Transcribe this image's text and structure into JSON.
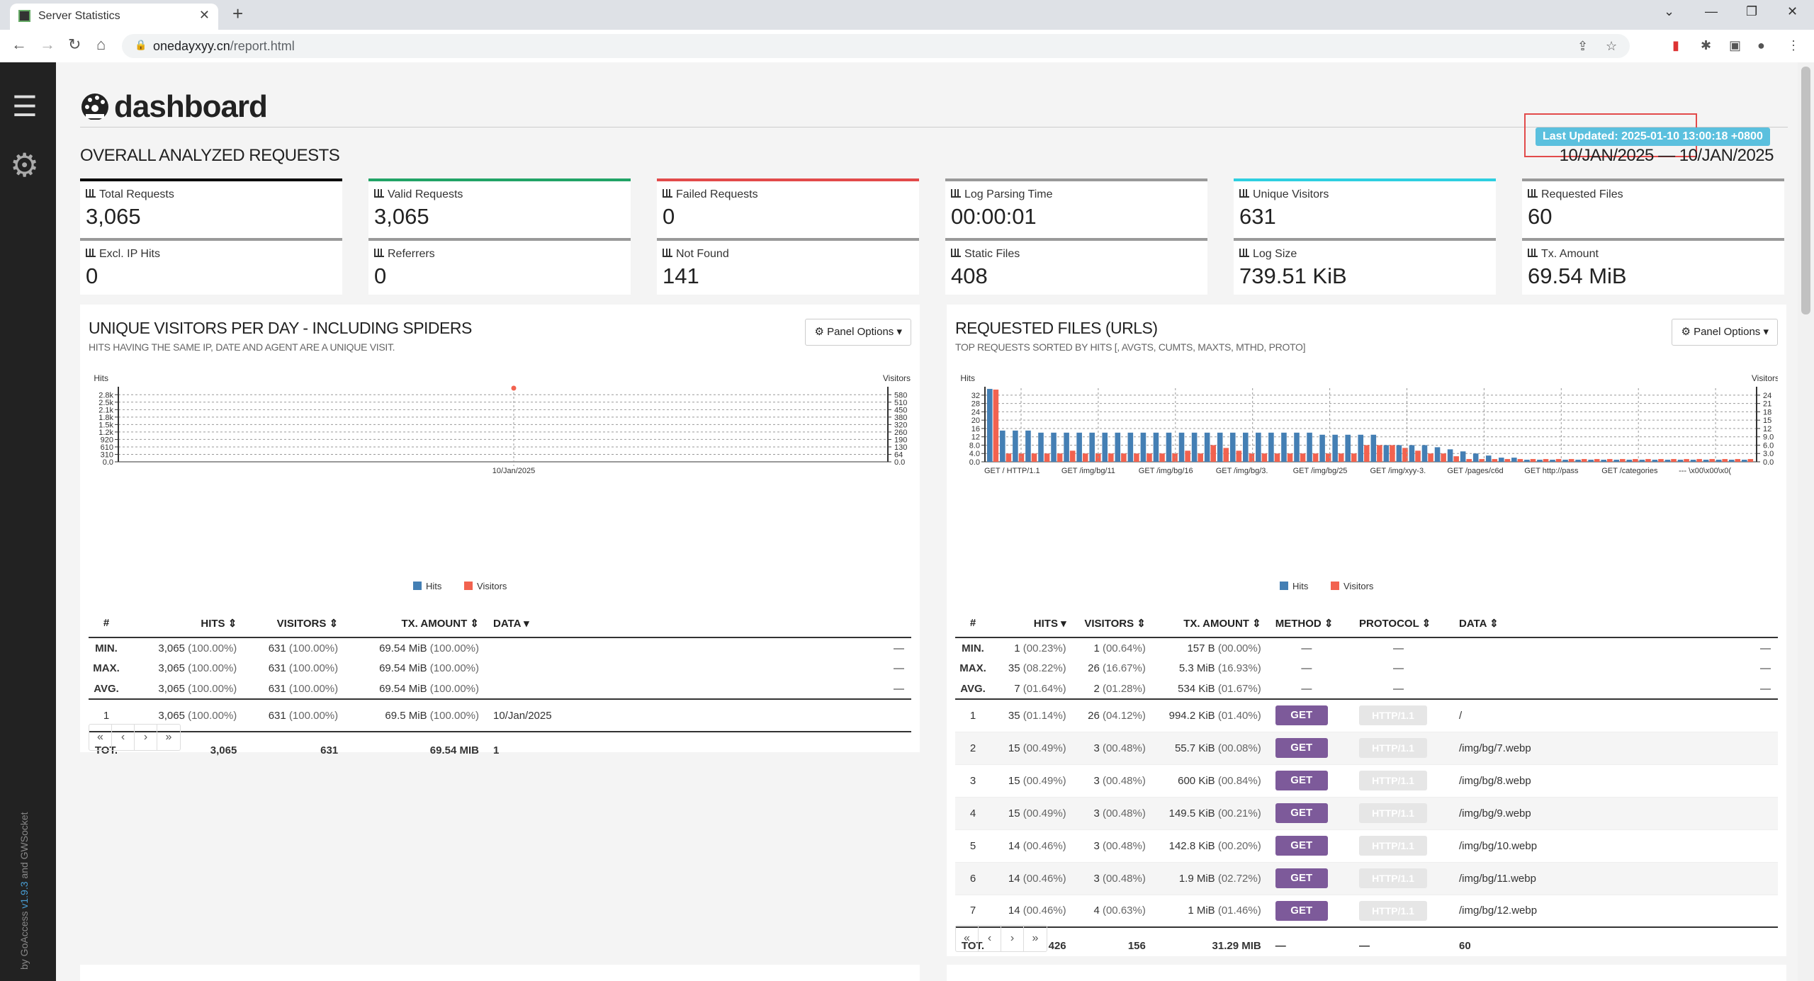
{
  "browser": {
    "tab_title": "Server Statistics",
    "url_host": "onedayxyy.cn",
    "url_path": "/report.html"
  },
  "sidebar": {
    "credit_prefix": "by GoAccess ",
    "credit_version": "v1.9.3",
    "credit_suffix": " and GWSocket"
  },
  "header": {
    "brand": "dashboard",
    "last_updated": "Last Updated: 2025-01-10 13:00:18 +0800"
  },
  "overall": {
    "title": "OVERALL ANALYZED REQUESTS",
    "date_range": "10/JAN/2025 — 10/JAN/2025",
    "cards": [
      {
        "label": "Total Requests",
        "value": "3,065",
        "color": "#000000"
      },
      {
        "label": "Valid Requests",
        "value": "3,065",
        "color": "#21a366"
      },
      {
        "label": "Failed Requests",
        "value": "0",
        "color": "#e24a4a"
      },
      {
        "label": "Log Parsing Time",
        "value": "00:00:01",
        "color": "#999999"
      },
      {
        "label": "Unique Visitors",
        "value": "631",
        "color": "#2ecfe0"
      },
      {
        "label": "Requested Files",
        "value": "60",
        "color": "#999999"
      },
      {
        "label": "Excl. IP Hits",
        "value": "0",
        "color": "#999999"
      },
      {
        "label": "Referrers",
        "value": "0",
        "color": "#999999"
      },
      {
        "label": "Not Found",
        "value": "141",
        "color": "#999999"
      },
      {
        "label": "Static Files",
        "value": "408",
        "color": "#999999"
      },
      {
        "label": "Log Size",
        "value": "739.51 KiB",
        "color": "#999999"
      },
      {
        "label": "Tx. Amount",
        "value": "69.54 MiB",
        "color": "#999999"
      }
    ]
  },
  "visitors_panel": {
    "title": "UNIQUE VISITORS PER DAY - INCLUDING SPIDERS",
    "subtitle": "HITS HAVING THE SAME IP, DATE AND AGENT ARE A UNIQUE VISIT.",
    "options_label": "Panel Options",
    "legend_hits": "Hits",
    "legend_visitors": "Visitors",
    "columns": [
      "#",
      "HITS",
      "VISITORS",
      "TX. AMOUNT",
      "DATA"
    ],
    "agg": [
      {
        "label": "MIN.",
        "hits": "3,065",
        "hits_pct": "(100.00%)",
        "vis": "631",
        "vis_pct": "(100.00%)",
        "tx": "69.54 MiB",
        "tx_pct": "(100.00%)",
        "data": "—"
      },
      {
        "label": "MAX.",
        "hits": "3,065",
        "hits_pct": "(100.00%)",
        "vis": "631",
        "vis_pct": "(100.00%)",
        "tx": "69.54 MiB",
        "tx_pct": "(100.00%)",
        "data": "—"
      },
      {
        "label": "AVG.",
        "hits": "3,065",
        "hits_pct": "(100.00%)",
        "vis": "631",
        "vis_pct": "(100.00%)",
        "tx": "69.54 MiB",
        "tx_pct": "(100.00%)",
        "data": "—"
      }
    ],
    "rows": [
      {
        "n": "1",
        "hits": "3,065",
        "hits_pct": "(100.00%)",
        "vis": "631",
        "vis_pct": "(100.00%)",
        "tx": "69.5 MiB",
        "tx_pct": "(100.00%)",
        "data": "10/Jan/2025"
      }
    ],
    "total": {
      "label": "TOT.",
      "hits": "3,065",
      "vis": "631",
      "tx": "69.54 MIB",
      "data": "1"
    }
  },
  "files_panel": {
    "title": "REQUESTED FILES (URLS)",
    "subtitle": "TOP REQUESTS SORTED BY HITS [, AVGTS, CUMTS, MAXTS, MTHD, PROTO]",
    "options_label": "Panel Options",
    "legend_hits": "Hits",
    "legend_visitors": "Visitors",
    "columns": [
      "#",
      "HITS",
      "VISITORS",
      "TX. AMOUNT",
      "METHOD",
      "PROTOCOL",
      "DATA"
    ],
    "agg": [
      {
        "label": "MIN.",
        "hits": "1",
        "hits_pct": "(00.23%)",
        "vis": "1",
        "vis_pct": "(00.64%)",
        "tx": "157 B",
        "tx_pct": "(00.00%)",
        "method": "—",
        "proto": "—",
        "data": "—"
      },
      {
        "label": "MAX.",
        "hits": "35",
        "hits_pct": "(08.22%)",
        "vis": "26",
        "vis_pct": "(16.67%)",
        "tx": "5.3 MiB",
        "tx_pct": "(16.93%)",
        "method": "—",
        "proto": "—",
        "data": "—"
      },
      {
        "label": "AVG.",
        "hits": "7",
        "hits_pct": "(01.64%)",
        "vis": "2",
        "vis_pct": "(01.28%)",
        "tx": "534 KiB",
        "tx_pct": "(01.67%)",
        "method": "—",
        "proto": "—",
        "data": "—"
      }
    ],
    "rows": [
      {
        "n": "1",
        "hits": "35",
        "hits_pct": "(01.14%)",
        "vis": "26",
        "vis_pct": "(04.12%)",
        "tx": "994.2 KiB",
        "tx_pct": "(01.40%)",
        "method": "GET",
        "proto": "HTTP/1.1",
        "data": "/"
      },
      {
        "n": "2",
        "hits": "15",
        "hits_pct": "(00.49%)",
        "vis": "3",
        "vis_pct": "(00.48%)",
        "tx": "55.7 KiB",
        "tx_pct": "(00.08%)",
        "method": "GET",
        "proto": "HTTP/1.1",
        "data": "/img/bg/7.webp"
      },
      {
        "n": "3",
        "hits": "15",
        "hits_pct": "(00.49%)",
        "vis": "3",
        "vis_pct": "(00.48%)",
        "tx": "600 KiB",
        "tx_pct": "(00.84%)",
        "method": "GET",
        "proto": "HTTP/1.1",
        "data": "/img/bg/8.webp"
      },
      {
        "n": "4",
        "hits": "15",
        "hits_pct": "(00.49%)",
        "vis": "3",
        "vis_pct": "(00.48%)",
        "tx": "149.5 KiB",
        "tx_pct": "(00.21%)",
        "method": "GET",
        "proto": "HTTP/1.1",
        "data": "/img/bg/9.webp"
      },
      {
        "n": "5",
        "hits": "14",
        "hits_pct": "(00.46%)",
        "vis": "3",
        "vis_pct": "(00.48%)",
        "tx": "142.8 KiB",
        "tx_pct": "(00.20%)",
        "method": "GET",
        "proto": "HTTP/1.1",
        "data": "/img/bg/10.webp"
      },
      {
        "n": "6",
        "hits": "14",
        "hits_pct": "(00.46%)",
        "vis": "3",
        "vis_pct": "(00.48%)",
        "tx": "1.9 MiB",
        "tx_pct": "(02.72%)",
        "method": "GET",
        "proto": "HTTP/1.1",
        "data": "/img/bg/11.webp"
      },
      {
        "n": "7",
        "hits": "14",
        "hits_pct": "(00.46%)",
        "vis": "4",
        "vis_pct": "(00.63%)",
        "tx": "1 MiB",
        "tx_pct": "(01.46%)",
        "method": "GET",
        "proto": "HTTP/1.1",
        "data": "/img/bg/12.webp"
      }
    ],
    "total": {
      "label": "TOT.",
      "hits": "426",
      "vis": "156",
      "tx": "31.29 MIB",
      "method": "—",
      "proto": "—",
      "data": "60"
    }
  },
  "chart_data": [
    {
      "type": "bar",
      "title": "UNIQUE VISITORS PER DAY - INCLUDING SPIDERS",
      "ylabel": "Hits",
      "y2label": "Visitors",
      "categories": [
        "10/Jan/2025"
      ],
      "y_ticks": [
        "0.0",
        "310",
        "610",
        "920",
        "1.2k",
        "1.5k",
        "1.8k",
        "2.1k",
        "2.5k",
        "2.8k"
      ],
      "y2_ticks": [
        "0.0",
        "64",
        "130",
        "190",
        "260",
        "320",
        "380",
        "450",
        "510",
        "580"
      ],
      "ylim": [
        0,
        3065
      ],
      "y2lim": [
        0,
        631
      ],
      "series": [
        {
          "name": "Hits",
          "values": [
            3065
          ],
          "color": "#447fb4"
        },
        {
          "name": "Visitors",
          "values": [
            631
          ],
          "color": "#f2624f"
        }
      ]
    },
    {
      "type": "bar",
      "title": "REQUESTED FILES (URLS)",
      "ylabel": "Hits",
      "y2label": "Visitors",
      "x_tick_labels": [
        "GET / HTTP/1.1",
        "GET /img/bg/11",
        "GET /img/bg/16",
        "GET /img/bg/3.",
        "GET /img/bg/25",
        "GET /img/xyy-3.",
        "GET /pages/c6d",
        "GET http://pass",
        "GET /categories",
        "--- \\x00\\x00\\x0("
      ],
      "y_ticks": [
        "0.0",
        "4.0",
        "8.0",
        "12",
        "16",
        "20",
        "24",
        "28",
        "32"
      ],
      "y2_ticks": [
        "0.0",
        "3.0",
        "6.0",
        "9.0",
        "12",
        "15",
        "18",
        "21",
        "24"
      ],
      "ylim": [
        0,
        35
      ],
      "y2lim": [
        0,
        26
      ],
      "series": [
        {
          "name": "Hits",
          "color": "#447fb4",
          "values": [
            35,
            15,
            15,
            15,
            14,
            14,
            14,
            14,
            14,
            14,
            14,
            14,
            14,
            14,
            14,
            14,
            14,
            14,
            14,
            14,
            14,
            14,
            14,
            14,
            14,
            14,
            13,
            13,
            13,
            13,
            13,
            8,
            8,
            8,
            8,
            7,
            6,
            5,
            4,
            3,
            2,
            2,
            1,
            1,
            1,
            1,
            1,
            1,
            1,
            1,
            1,
            1,
            1,
            1,
            1,
            1,
            1,
            1,
            1,
            1
          ]
        },
        {
          "name": "Visitors",
          "color": "#f2624f",
          "values": [
            26,
            3,
            3,
            3,
            3,
            3,
            4,
            3,
            3,
            3,
            3,
            3,
            3,
            3,
            3,
            4,
            3,
            6,
            5,
            4,
            3,
            3,
            3,
            3,
            3,
            3,
            3,
            3,
            3,
            6,
            6,
            6,
            5,
            4,
            3,
            3,
            2,
            1,
            1,
            1,
            1,
            1,
            1,
            1,
            1,
            1,
            1,
            1,
            1,
            1,
            1,
            1,
            1,
            1,
            1,
            1,
            1,
            1,
            1,
            1
          ]
        }
      ]
    }
  ]
}
